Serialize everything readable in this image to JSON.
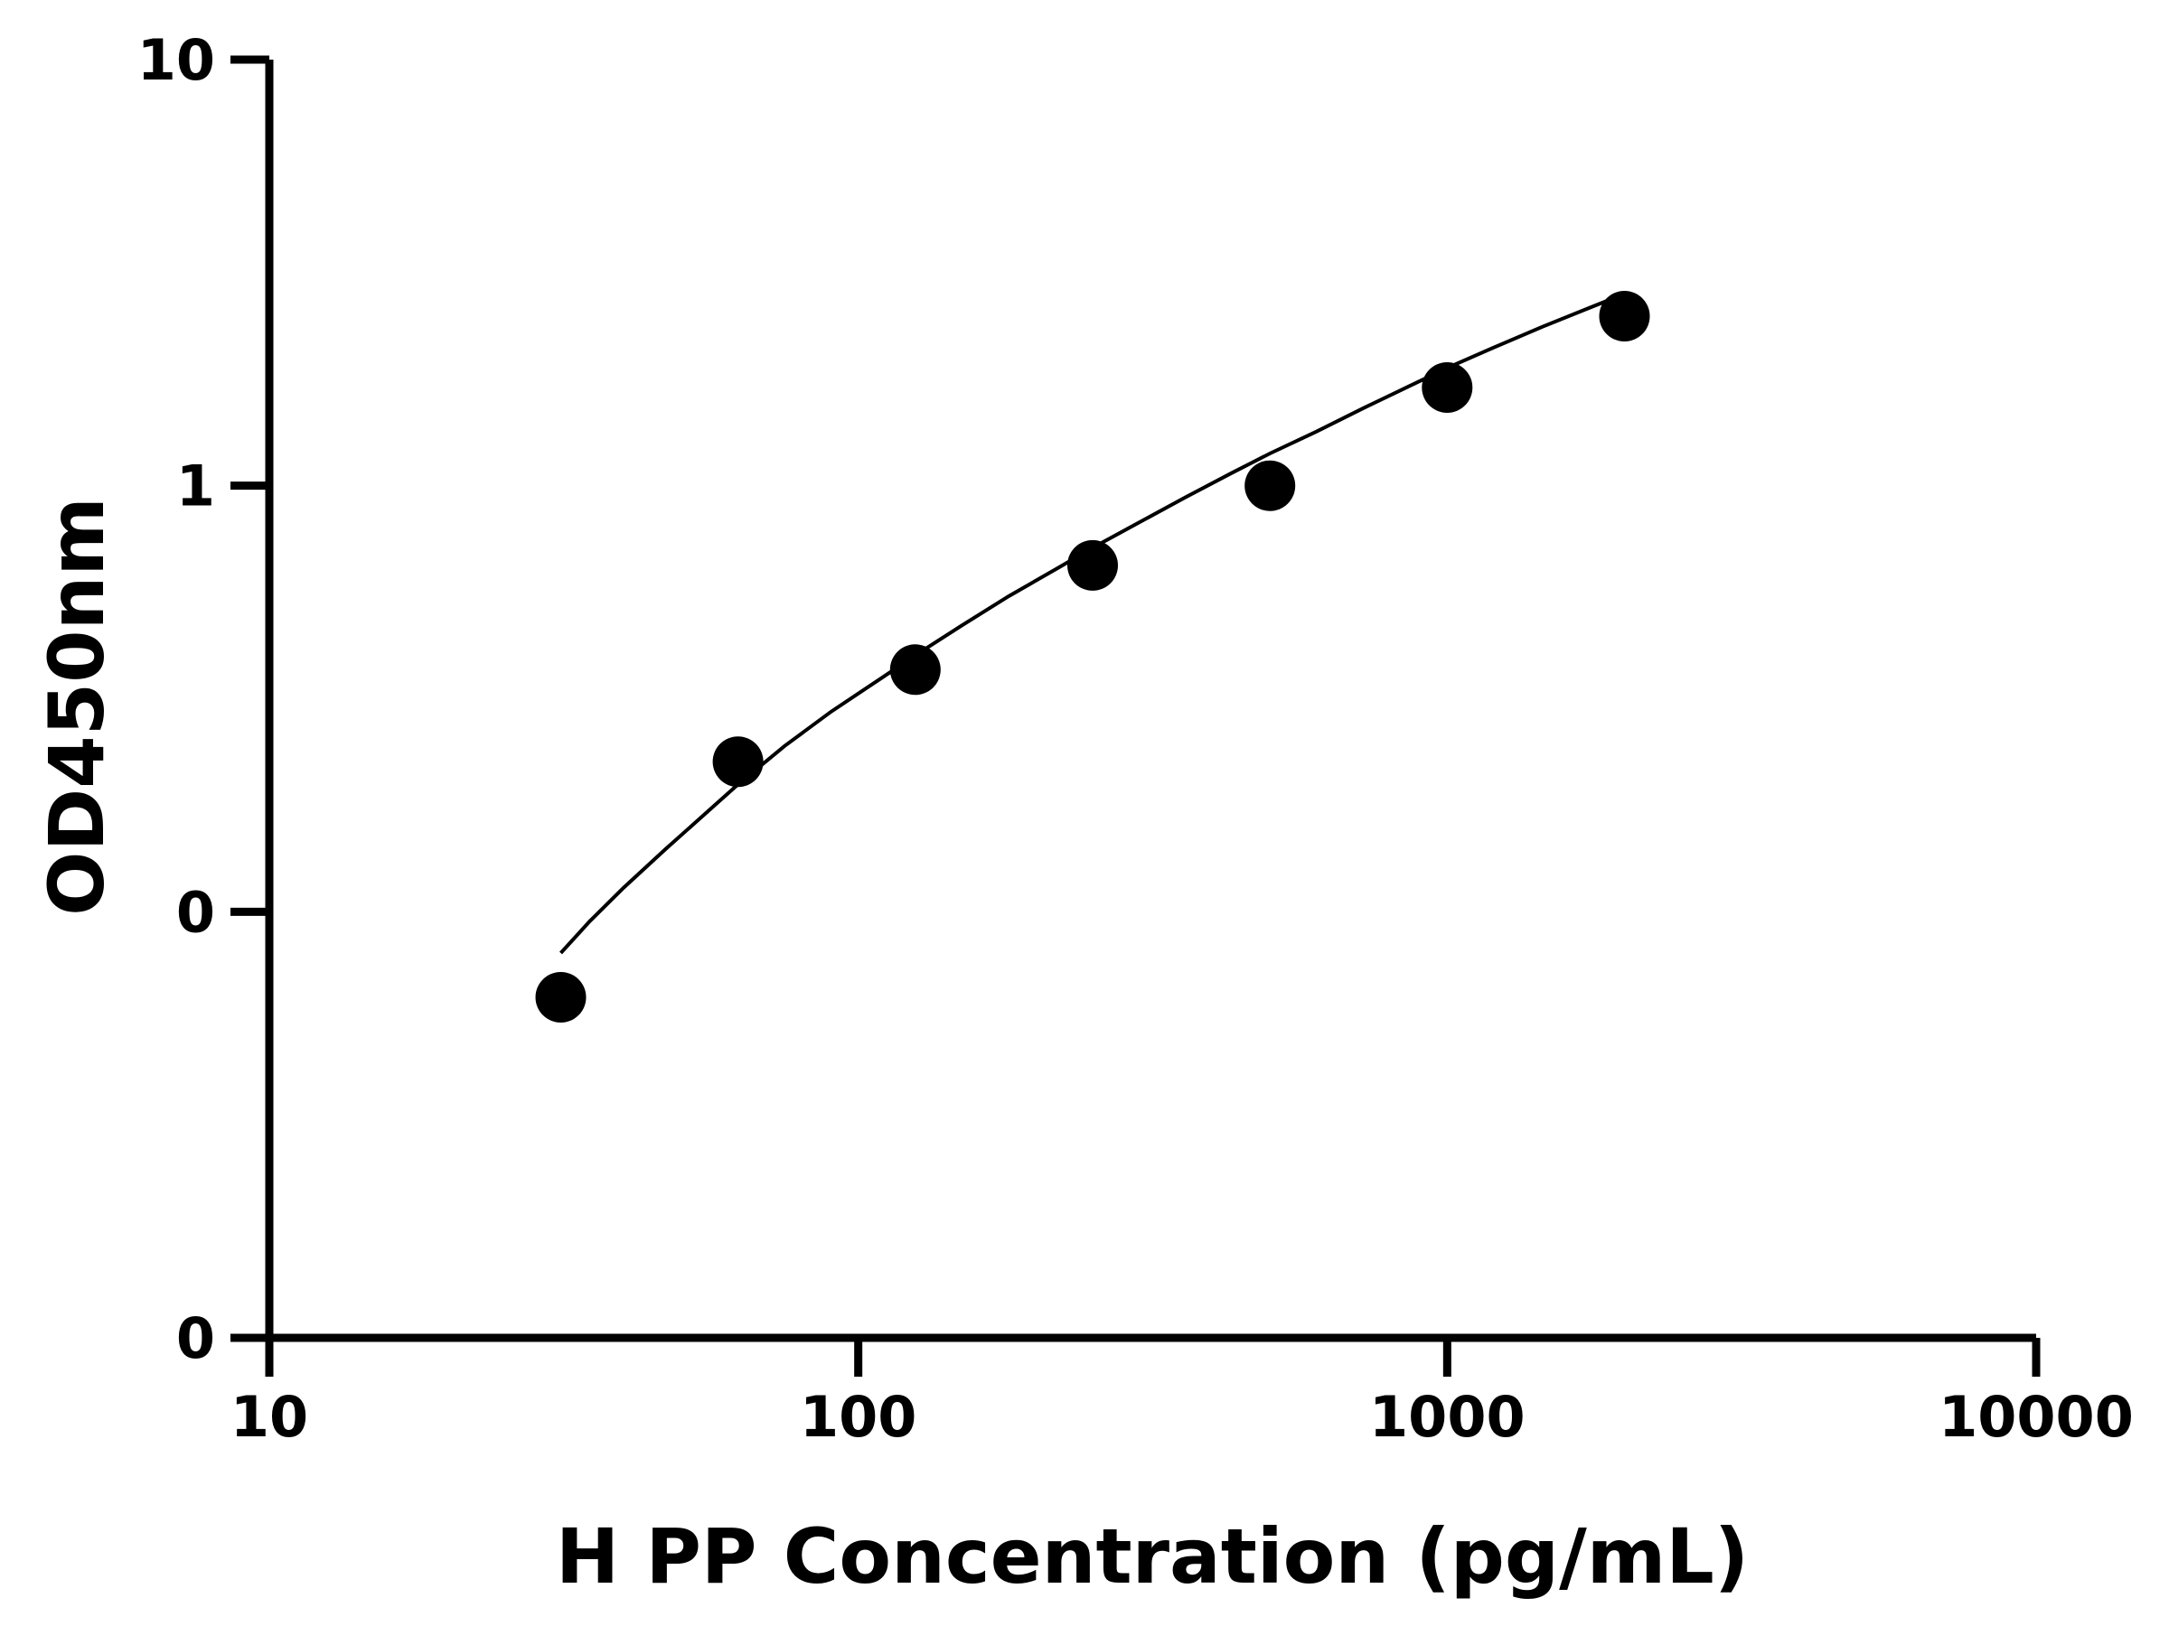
{
  "chart_data": {
    "type": "scatter",
    "title": "",
    "xlabel": "H PP Concentration (pg/mL)",
    "ylabel": "OD450nm",
    "x_scale": "log",
    "xlim": [
      10,
      10000
    ],
    "x_ticks": [
      {
        "value": 10,
        "label": "10"
      },
      {
        "value": 100,
        "label": "100"
      },
      {
        "value": 1000,
        "label": "1000"
      },
      {
        "value": 10000,
        "label": "10000"
      }
    ],
    "y_ticks": [
      {
        "value": 10,
        "label": "10"
      },
      {
        "value": 1,
        "label": "1"
      },
      {
        "value": 0.1,
        "label": "0"
      },
      {
        "value": 0.01,
        "label": "0"
      }
    ],
    "y_scale": "log",
    "ylim": [
      0.01,
      10
    ],
    "grid": false,
    "series": [
      {
        "x": [
          31.25,
          62.5,
          125,
          250,
          500,
          1000,
          2000
        ],
        "y": [
          0.063,
          0.225,
          0.37,
          0.65,
          1.0,
          1.7,
          2.5
        ],
        "marker": "circle",
        "color": "#000000"
      }
    ],
    "fit_curve": {
      "x": [
        31.25,
        35,
        40,
        47,
        55,
        62.5,
        75,
        90,
        110,
        125,
        150,
        180,
        220,
        250,
        300,
        360,
        430,
        500,
        600,
        720,
        860,
        1000,
        1200,
        1450,
        1750,
        2000
      ],
      "y": [
        0.08,
        0.095,
        0.114,
        0.14,
        0.17,
        0.199,
        0.245,
        0.295,
        0.355,
        0.4,
        0.47,
        0.55,
        0.645,
        0.715,
        0.82,
        0.94,
        1.07,
        1.19,
        1.34,
        1.52,
        1.71,
        1.89,
        2.11,
        2.36,
        2.62,
        2.82
      ],
      "color": "#000000"
    }
  }
}
